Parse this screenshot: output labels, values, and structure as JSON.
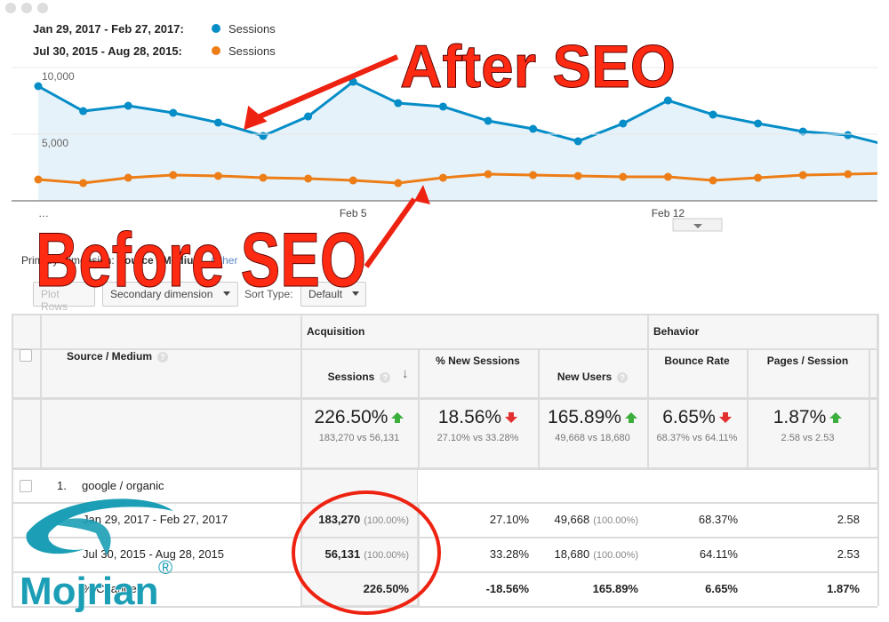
{
  "chart_data": {
    "type": "line",
    "categories": [
      "…",
      null,
      null,
      null,
      null,
      null,
      null,
      "Feb 5",
      null,
      null,
      null,
      null,
      null,
      null,
      "Feb 12",
      null,
      null,
      null,
      null,
      null
    ],
    "series": [
      {
        "name": "Sessions",
        "range": "Jan 29, 2017 - Feb 27, 2017:",
        "color": "#058dc7",
        "fill": "#e6f2f9",
        "values": [
          8600,
          6730,
          7130,
          6600,
          5870,
          4870,
          6330,
          8930,
          7330,
          7070,
          6000,
          5400,
          4470,
          5800,
          7530,
          6470,
          5800,
          5200,
          4930,
          4070
        ]
      },
      {
        "name": "Sessions",
        "range": "Jul 30, 2015 - Aug 28, 2015:",
        "color": "#ed7e17",
        "values": [
          1600,
          1330,
          1730,
          1930,
          1870,
          1730,
          1670,
          1530,
          1330,
          1730,
          2000,
          1930,
          1870,
          1800,
          1800,
          1530,
          1730,
          1930,
          2000,
          2070
        ]
      }
    ],
    "ylim": [
      0,
      10000
    ],
    "yticks": [
      {
        "value": 5000,
        "label": "5,000"
      },
      {
        "value": 10000,
        "label": "10,000"
      }
    ],
    "grid": true
  },
  "annotations": [
    "After SEO",
    "Before SEO"
  ],
  "toolbar": {
    "primary_label": "Primary Dimension:",
    "primary": "Source / Medium",
    "other": "Other",
    "plot_rows": "Plot Rows",
    "secondary": "Secondary dimension",
    "sort_label": "Sort Type:",
    "sort_value": "Default"
  },
  "table": {
    "groups": [
      "Acquisition",
      "Behavior"
    ],
    "columns": [
      "Source / Medium",
      "Sessions",
      "% New Sessions",
      "New Users",
      "Bounce Rate",
      "Pages / Session"
    ],
    "summary": [
      {
        "value": "226.50%",
        "compare": "183,270 vs 56,131"
      },
      {
        "value": "18.56%",
        "compare": "27.10% vs 33.28%"
      },
      {
        "value": "165.89%",
        "compare": "49,668 vs 18,680"
      },
      {
        "value": "6.65%",
        "compare": "68.37% vs 64.11%"
      },
      {
        "value": "1.87%",
        "compare": "2.58 vs 2.53"
      }
    ],
    "row": {
      "index": "1.",
      "label": "google / organic"
    },
    "subrows": [
      {
        "label": "Jan 29, 2017 - Feb 27, 2017",
        "cells": [
          {
            "value": "183,270",
            "share": "(100.00%)"
          },
          {
            "value": "27.10%"
          },
          {
            "value": "49,668",
            "share": "(100.00%)"
          },
          {
            "value": "68.37%"
          },
          {
            "value": "2.58"
          }
        ]
      },
      {
        "label": "Jul 30, 2015 - Aug 28, 2015",
        "cells": [
          {
            "value": "56,131",
            "share": "(100.00%)"
          },
          {
            "value": "33.28%"
          },
          {
            "value": "18,680",
            "share": "(100.00%)"
          },
          {
            "value": "64.11%"
          },
          {
            "value": "2.53"
          }
        ]
      },
      {
        "label": "% Change",
        "cells": [
          {
            "value": "226.50%"
          },
          {
            "value": "-18.56%"
          },
          {
            "value": "165.89%"
          },
          {
            "value": "6.65%"
          },
          {
            "value": "1.87%"
          }
        ]
      }
    ]
  },
  "logo": {
    "text": "Mojrian",
    "mark": "®"
  }
}
